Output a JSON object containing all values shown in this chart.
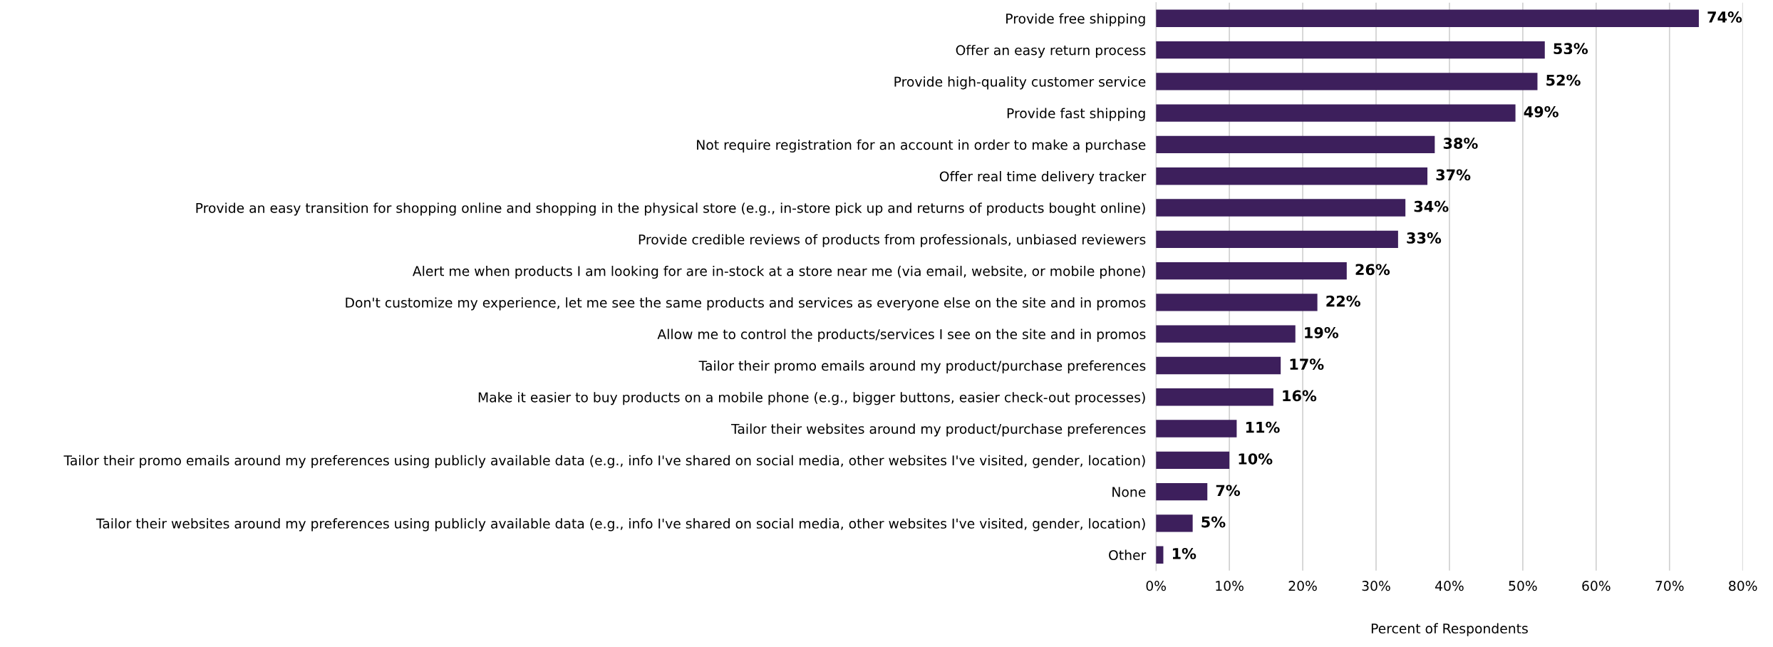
{
  "chart_data": {
    "type": "bar",
    "orientation": "horizontal",
    "xlabel": "Percent of Respondents",
    "categories": [
      "Provide free shipping",
      "Offer an easy return process",
      "Provide high-quality customer service",
      "Provide fast shipping",
      "Not require registration for an account in order to make a purchase",
      "Offer real time delivery tracker",
      "Provide an easy transition for shopping online and shopping in the physical store (e.g., in-store pick up and returns of products bought online)",
      "Provide credible reviews of products from professionals, unbiased reviewers",
      "Alert me when products I am looking for are in-stock at a store near me (via email, website, or mobile phone)",
      "Don't customize my experience, let me see the same products and services as everyone else on the site and in promos",
      "Allow me to control the products/services I see on the site and in promos",
      "Tailor their promo emails around my product/purchase preferences",
      "Make it easier to buy products on a mobile phone (e.g., bigger buttons, easier check-out processes)",
      "Tailor their websites around my product/purchase preferences",
      "Tailor their promo emails around my preferences using publicly available data (e.g., info I've shared on social media, other websites I've visited, gender, location)",
      "None",
      "Tailor their websites around my preferences using publicly available data (e.g., info I've shared on social media, other websites I've visited, gender, location)",
      "Other"
    ],
    "values": [
      74,
      53,
      52,
      49,
      38,
      37,
      34,
      33,
      26,
      22,
      19,
      17,
      16,
      11,
      10,
      7,
      5,
      1
    ],
    "value_labels": [
      "74%",
      "53%",
      "52%",
      "49%",
      "38%",
      "37%",
      "34%",
      "33%",
      "26%",
      "22%",
      "19%",
      "17%",
      "16%",
      "11%",
      "10%",
      "7%",
      "5%",
      "1%"
    ],
    "color": "#3d1f5c",
    "xlim": [
      0,
      80
    ],
    "xticks": [
      {
        "value": 0,
        "label": "0%"
      },
      {
        "value": 10,
        "label": "10%"
      },
      {
        "value": 20,
        "label": "20%"
      },
      {
        "value": 30,
        "label": "30%"
      },
      {
        "value": 40,
        "label": "40%"
      },
      {
        "value": 50,
        "label": "50%"
      },
      {
        "value": 60,
        "label": "60%"
      },
      {
        "value": 70,
        "label": "70%"
      },
      {
        "value": 80,
        "label": "80%"
      }
    ],
    "grid": "x",
    "legend": false
  }
}
